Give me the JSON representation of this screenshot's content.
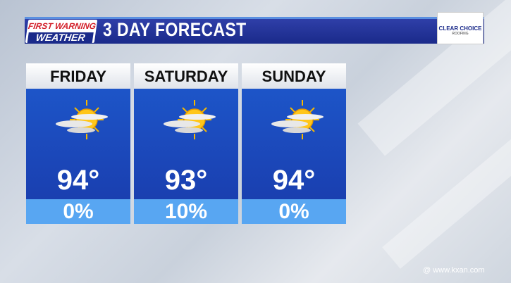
{
  "header": {
    "logo_line1": "FIRST WARNING",
    "logo_line2": "WEATHER",
    "title": "3 DAY FORECAST",
    "sponsor_line1": "CLEAR CHOICE",
    "sponsor_line2": "ROOFING"
  },
  "days": [
    {
      "day": "FRIDAY",
      "icon": "partly-cloudy-sun-icon",
      "temp": "94°",
      "precip": "0%"
    },
    {
      "day": "SATURDAY",
      "icon": "partly-cloudy-sun-icon",
      "temp": "93°",
      "precip": "10%"
    },
    {
      "day": "SUNDAY",
      "icon": "partly-cloudy-sun-icon",
      "temp": "94°",
      "precip": "0%"
    }
  ],
  "footer": {
    "url": "www.kxan.com"
  },
  "colors": {
    "bar": "#1a2a8a",
    "card_blue": "#1d55c8",
    "precip_band": "#58a6f2",
    "logo_red": "#d3202a"
  }
}
